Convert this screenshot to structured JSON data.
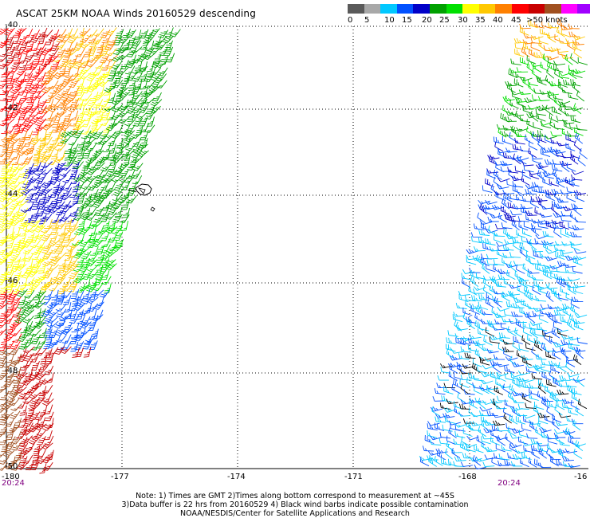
{
  "title": "ASCAT 25KM NOAA Winds 20160529 descending",
  "legend": {
    "colors": [
      "#5a5a5a",
      "#a8a8a8",
      "#00c8ff",
      "#0050ff",
      "#0000c8",
      "#00a000",
      "#00e000",
      "#ffff00",
      "#ffc800",
      "#ff8000",
      "#ff0000",
      "#c80000",
      "#a05020",
      "#ff00ff",
      "#a000ff",
      "#5000a0"
    ],
    "labels": [
      "0",
      "5",
      "10",
      "15",
      "20",
      "25",
      "30",
      "35",
      "40",
      "45",
      ">50 knots"
    ]
  },
  "lat_labels": [
    "-40",
    "-42",
    "-44",
    "-46",
    "-48",
    "-50"
  ],
  "lon_labels": [
    "-180",
    "-177",
    "-174",
    "-171",
    "-168",
    "-16"
  ],
  "time_labels": [
    "20:24",
    "20:24"
  ],
  "notes": [
    "Note: 1) Times are GMT 2)Times along bottom correspond to measurement at ~45S",
    "3)Data buffer is 22 hrs from 20160529 4) Black wind barbs indicate possible contamination",
    "NOAA/NESDIS/Center for Satellite Applications and Research"
  ]
}
